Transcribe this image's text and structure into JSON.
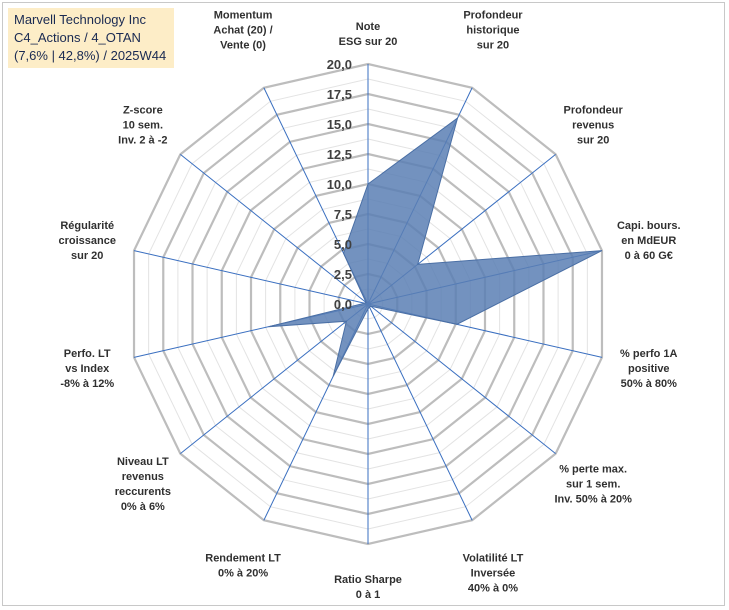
{
  "header": {
    "line1": "Marvell Technology Inc",
    "line2": "C4_Actions / 4_OTAN",
    "line3": "(7,6% | 42,8%) / 2025W44"
  },
  "chart_data": {
    "type": "radar",
    "title": "Marvell Technology Inc",
    "rmin": 0,
    "rmax": 20,
    "ticks": [
      "0,0",
      "2,5",
      "5,0",
      "7,5",
      "10,0",
      "12,5",
      "15,0",
      "17,5",
      "20,0"
    ],
    "tick_values": [
      0,
      2.5,
      5,
      7.5,
      10,
      12.5,
      15,
      17.5,
      20
    ],
    "axes": [
      {
        "lines": [
          "Note",
          "ESG sur 20"
        ]
      },
      {
        "lines": [
          "Profondeur",
          "historique",
          "sur 20"
        ]
      },
      {
        "lines": [
          "Profondeur",
          "revenus",
          "sur 20"
        ]
      },
      {
        "lines": [
          "Capi. bours.",
          "en MdEUR",
          "0 à 60 G€"
        ]
      },
      {
        "lines": [
          "% perfo 1A",
          "positive",
          "50% à 80%"
        ]
      },
      {
        "lines": [
          "% perte max.",
          "sur 1 sem.",
          "Inv. 50% à 20%"
        ]
      },
      {
        "lines": [
          "Volatilité LT",
          "Inversée",
          "40% à 0%"
        ]
      },
      {
        "lines": [
          "Ratio Sharpe",
          "0 à 1"
        ]
      },
      {
        "lines": [
          "Rendement LT",
          "0% à 20%"
        ]
      },
      {
        "lines": [
          "Niveau LT",
          "revenus",
          "reccurents",
          "0% à 6%"
        ]
      },
      {
        "lines": [
          "Perfo. LT",
          "vs Index",
          "-8% à 12%"
        ]
      },
      {
        "lines": [
          "Régularité",
          "croissance",
          "sur 20"
        ]
      },
      {
        "lines": [
          "Z-score",
          "10 sem.",
          "Inv. 2 à -2"
        ]
      },
      {
        "lines": [
          "Momentum",
          "Achat (20) /",
          "Vente (0)"
        ]
      }
    ],
    "series": [
      {
        "name": "Marvell Technology Inc",
        "values": [
          10,
          17.2,
          5.3,
          20,
          7.6,
          0.3,
          0.3,
          0.4,
          6.7,
          2.3,
          8.5,
          0.3,
          0.2,
          4.7
        ],
        "fill": "#5b7fb4",
        "stroke": "#4a6fa5"
      }
    ],
    "grid_color": "#c4c4c4",
    "spoke_color": "#3a6fc0"
  }
}
